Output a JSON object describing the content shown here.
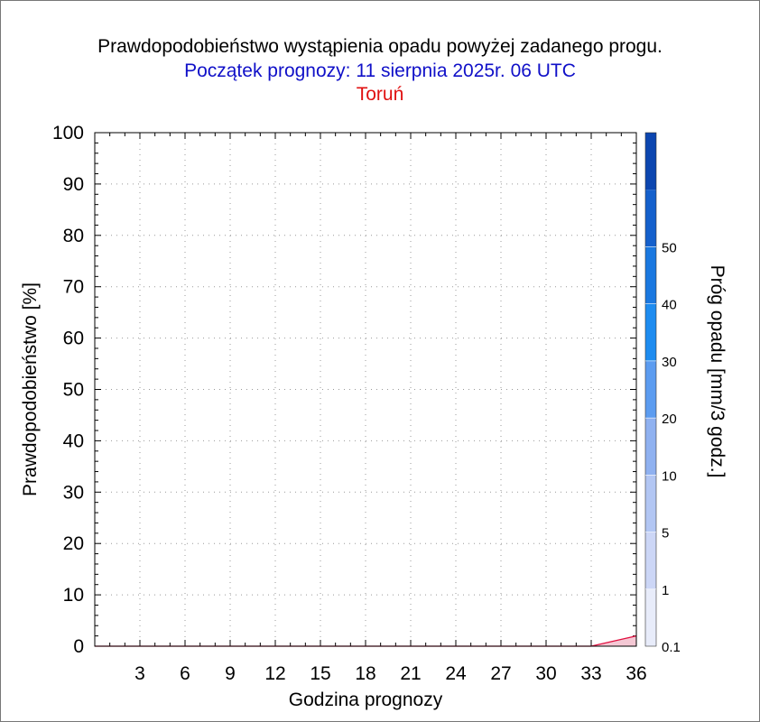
{
  "header": {
    "title": "Prawdopodobieństwo wystąpienia opadu powyżej zadanego progu.",
    "subtitle": "Początek prognozy: 11 sierpnia 2025r. 06 UTC",
    "location": "Toruń"
  },
  "chart_data": {
    "type": "area",
    "title": "Prawdopodobieństwo wystąpienia opadu powyżej zadanego progu.",
    "subtitle": "Początek prognozy: 11 sierpnia 2025r. 06 UTC",
    "location": "Toruń",
    "xlabel": "Godzina prognozy",
    "ylabel": "Prawdopodobieństwo [%]",
    "xlim": [
      0,
      36
    ],
    "ylim": [
      0,
      100
    ],
    "x_ticks": [
      3,
      6,
      9,
      12,
      15,
      18,
      21,
      24,
      27,
      30,
      33,
      36
    ],
    "y_ticks": [
      0,
      10,
      20,
      30,
      40,
      50,
      60,
      70,
      80,
      90,
      100
    ],
    "grid": true,
    "series": [
      {
        "name": "0.1",
        "color": "#e01040",
        "x": [
          0,
          3,
          6,
          9,
          12,
          15,
          18,
          21,
          24,
          27,
          30,
          33,
          36
        ],
        "values": [
          0,
          0,
          0,
          0,
          0,
          0,
          0,
          0,
          0,
          0,
          0,
          0,
          2
        ]
      }
    ],
    "colorbar": {
      "label": "Próg opadu [mm/3 godz.]",
      "ticks": [
        "0.1",
        "1",
        "5",
        "10",
        "20",
        "30",
        "40",
        "50"
      ],
      "colors": [
        "#e8ecfa",
        "#ccd6f6",
        "#b2c6f3",
        "#8fb1f0",
        "#5c9cf0",
        "#1e8cf0",
        "#1a78e0",
        "#1460cc",
        "#0c46b0"
      ]
    }
  }
}
